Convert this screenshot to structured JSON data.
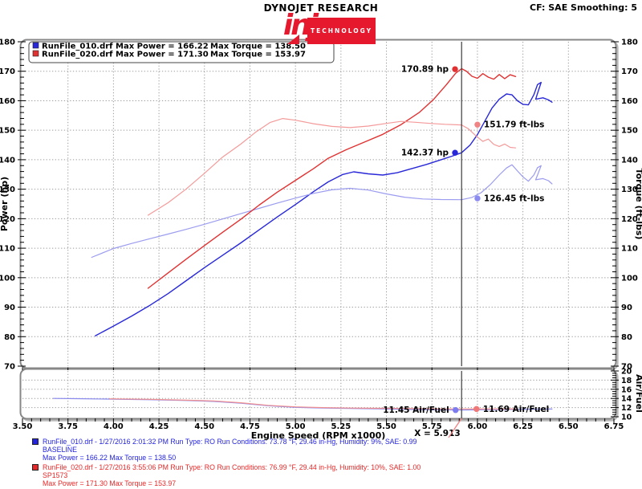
{
  "header": {
    "brand": "DYNOJET RESEARCH",
    "correction": "CF: SAE  Smoothing: 5",
    "logo_word": "injen",
    "logo_tm": "®",
    "logo_sub": "TECHNOLOGY",
    "logo_color": "#e5182e"
  },
  "legend": {
    "rows": [
      {
        "file": "RunFile_010.drf",
        "power": "Max Power = 166.22",
        "torque": "Max Torque = 138.50",
        "color": "#2828d8"
      },
      {
        "file": "RunFile_020.drf",
        "power": "Max Power = 171.30",
        "torque": "Max Torque = 153.97",
        "color": "#e03232"
      }
    ]
  },
  "cursor": {
    "rpm": 5.913,
    "label": "X = 5.913"
  },
  "chart_data": [
    {
      "type": "line",
      "xlabel": "Engine Speed (RPM x1000)",
      "ylabel_left": "Power (hp)",
      "ylabel_right": "Torque (ft-lbs)",
      "xlim": [
        3.5,
        6.75
      ],
      "x_tick_step": 0.25,
      "x_minor_step": 0.05,
      "ylim": [
        70,
        180
      ],
      "y_tick_step": 10,
      "y_minor_step": 2,
      "grid": true,
      "series": [
        {
          "id": "baseline-power",
          "name": "RunFile_010 Power (hp)",
          "color": "#2828d8",
          "width": 1.4,
          "points": [
            [
              3.9,
              80.3
            ],
            [
              4.0,
              83.6
            ],
            [
              4.1,
              87.0
            ],
            [
              4.2,
              90.6
            ],
            [
              4.3,
              94.6
            ],
            [
              4.4,
              99.0
            ],
            [
              4.5,
              103.4
            ],
            [
              4.6,
              107.6
            ],
            [
              4.7,
              111.8
            ],
            [
              4.8,
              116.2
            ],
            [
              4.9,
              120.6
            ],
            [
              5.0,
              124.8
            ],
            [
              5.1,
              129.2
            ],
            [
              5.18,
              132.5
            ],
            [
              5.26,
              135.0
            ],
            [
              5.32,
              135.9
            ],
            [
              5.4,
              135.2
            ],
            [
              5.48,
              134.8
            ],
            [
              5.56,
              135.6
            ],
            [
              5.64,
              137.0
            ],
            [
              5.72,
              138.4
            ],
            [
              5.8,
              140.0
            ],
            [
              5.86,
              141.2
            ],
            [
              5.913,
              142.37
            ],
            [
              5.96,
              145.0
            ],
            [
              6.0,
              148.5
            ],
            [
              6.04,
              153.0
            ],
            [
              6.08,
              157.5
            ],
            [
              6.12,
              160.5
            ],
            [
              6.16,
              162.3
            ],
            [
              6.19,
              162.0
            ],
            [
              6.22,
              160.0
            ],
            [
              6.25,
              158.8
            ],
            [
              6.28,
              158.6
            ],
            [
              6.31,
              162.0
            ],
            [
              6.33,
              165.5
            ],
            [
              6.35,
              166.22
            ],
            [
              6.33,
              162.5
            ],
            [
              6.32,
              160.5
            ],
            [
              6.36,
              161.0
            ],
            [
              6.39,
              160.3
            ],
            [
              6.41,
              159.5
            ]
          ]
        },
        {
          "id": "baseline-torque",
          "name": "RunFile_010 Torque (ft-lbs)",
          "color": "#9c9cf0",
          "width": 1.2,
          "points": [
            [
              3.88,
              106.9
            ],
            [
              4.0,
              109.9
            ],
            [
              4.1,
              111.6
            ],
            [
              4.2,
              113.2
            ],
            [
              4.3,
              114.8
            ],
            [
              4.4,
              116.4
            ],
            [
              4.5,
              118.1
            ],
            [
              4.6,
              119.9
            ],
            [
              4.7,
              121.7
            ],
            [
              4.8,
              123.5
            ],
            [
              4.9,
              125.3
            ],
            [
              5.0,
              127.0
            ],
            [
              5.1,
              128.6
            ],
            [
              5.2,
              129.8
            ],
            [
              5.3,
              130.3
            ],
            [
              5.4,
              129.7
            ],
            [
              5.5,
              128.4
            ],
            [
              5.6,
              127.3
            ],
            [
              5.7,
              126.7
            ],
            [
              5.8,
              126.5
            ],
            [
              5.913,
              126.45
            ],
            [
              5.97,
              127.2
            ],
            [
              6.02,
              128.8
            ],
            [
              6.07,
              131.5
            ],
            [
              6.12,
              134.8
            ],
            [
              6.16,
              137.2
            ],
            [
              6.19,
              138.3
            ],
            [
              6.22,
              136.2
            ],
            [
              6.25,
              134.2
            ],
            [
              6.28,
              132.7
            ],
            [
              6.31,
              134.8
            ],
            [
              6.33,
              137.3
            ],
            [
              6.35,
              138.0
            ],
            [
              6.33,
              134.8
            ],
            [
              6.32,
              133.2
            ],
            [
              6.36,
              133.6
            ],
            [
              6.39,
              132.9
            ],
            [
              6.41,
              131.8
            ]
          ]
        },
        {
          "id": "sp1573-power",
          "name": "RunFile_020 Power (hp)",
          "color": "#e03232",
          "width": 1.4,
          "points": [
            [
              4.19,
              96.4
            ],
            [
              4.3,
              101.6
            ],
            [
              4.4,
              106.3
            ],
            [
              4.5,
              110.9
            ],
            [
              4.6,
              115.4
            ],
            [
              4.7,
              119.8
            ],
            [
              4.8,
              124.6
            ],
            [
              4.9,
              129.0
            ],
            [
              5.0,
              133.0
            ],
            [
              5.1,
              137.0
            ],
            [
              5.18,
              140.5
            ],
            [
              5.28,
              143.4
            ],
            [
              5.38,
              146.0
            ],
            [
              5.48,
              148.6
            ],
            [
              5.58,
              151.9
            ],
            [
              5.68,
              156.0
            ],
            [
              5.76,
              160.5
            ],
            [
              5.83,
              165.5
            ],
            [
              5.88,
              169.3
            ],
            [
              5.913,
              170.89
            ],
            [
              5.94,
              170.0
            ],
            [
              5.97,
              168.3
            ],
            [
              6.0,
              167.6
            ],
            [
              6.03,
              169.2
            ],
            [
              6.06,
              168.0
            ],
            [
              6.09,
              167.3
            ],
            [
              6.12,
              168.9
            ],
            [
              6.15,
              167.5
            ],
            [
              6.18,
              168.8
            ],
            [
              6.21,
              168.2
            ]
          ]
        },
        {
          "id": "sp1573-torque",
          "name": "RunFile_020 Torque (ft-lbs)",
          "color": "#f49a9a",
          "width": 1.2,
          "points": [
            [
              4.19,
              121.2
            ],
            [
              4.3,
              125.4
            ],
            [
              4.4,
              130.1
            ],
            [
              4.5,
              135.4
            ],
            [
              4.6,
              140.9
            ],
            [
              4.7,
              145.3
            ],
            [
              4.78,
              149.3
            ],
            [
              4.86,
              152.6
            ],
            [
              4.93,
              153.97
            ],
            [
              5.0,
              153.4
            ],
            [
              5.1,
              152.2
            ],
            [
              5.2,
              151.3
            ],
            [
              5.3,
              150.9
            ],
            [
              5.4,
              151.4
            ],
            [
              5.5,
              152.3
            ],
            [
              5.58,
              153.0
            ],
            [
              5.66,
              152.7
            ],
            [
              5.74,
              152.3
            ],
            [
              5.82,
              152.0
            ],
            [
              5.913,
              151.79
            ],
            [
              5.95,
              150.5
            ],
            [
              5.99,
              148.2
            ],
            [
              6.03,
              146.2
            ],
            [
              6.06,
              147.0
            ],
            [
              6.09,
              145.2
            ],
            [
              6.12,
              144.5
            ],
            [
              6.15,
              145.3
            ],
            [
              6.18,
              144.2
            ],
            [
              6.21,
              144.0
            ]
          ]
        }
      ],
      "annotations": [
        {
          "text": "170.89 hp",
          "rpm": 5.877,
          "value": 170.7,
          "color": "#e03232",
          "side": "left"
        },
        {
          "text": "151.79 ft-lbs",
          "rpm": 6.0,
          "value": 151.9,
          "color": "#f08484",
          "side": "right"
        },
        {
          "text": "142.37 hp",
          "rpm": 5.877,
          "value": 142.37,
          "color": "#2828d8",
          "side": "left"
        },
        {
          "text": "126.45 ft-lbs",
          "rpm": 6.0,
          "value": 126.9,
          "color": "#8c8cf0",
          "side": "right"
        }
      ]
    },
    {
      "type": "line",
      "xlabel": "",
      "ylabel_left": "",
      "ylabel_right": "Air/Fuel",
      "xlim": [
        3.5,
        6.75
      ],
      "x_tick_step": 0.25,
      "x_minor_step": 0.05,
      "ylim": [
        10,
        20
      ],
      "y_tick_step": 2,
      "y_minor_step": 0.5,
      "grid": true,
      "series": [
        {
          "id": "baseline-airfuel",
          "name": "RunFile_010 Air/Fuel",
          "color": "#8a8aee",
          "width": 1.2,
          "points": [
            [
              3.67,
              14.0
            ],
            [
              3.8,
              13.95
            ],
            [
              4.0,
              13.85
            ],
            [
              4.2,
              13.72
            ],
            [
              4.4,
              13.55
            ],
            [
              4.55,
              13.35
            ],
            [
              4.7,
              12.95
            ],
            [
              4.85,
              12.4
            ],
            [
              5.0,
              12.05
            ],
            [
              5.15,
              11.9
            ],
            [
              5.3,
              11.82
            ],
            [
              5.45,
              11.72
            ],
            [
              5.6,
              11.62
            ],
            [
              5.75,
              11.52
            ],
            [
              5.913,
              11.45
            ],
            [
              6.05,
              11.55
            ],
            [
              6.2,
              11.62
            ],
            [
              6.41,
              11.68
            ]
          ]
        },
        {
          "id": "sp1573-airfuel",
          "name": "RunFile_020 Air/Fuel",
          "color": "#f29090",
          "width": 1.2,
          "points": [
            [
              3.98,
              13.92
            ],
            [
              4.2,
              13.8
            ],
            [
              4.4,
              13.62
            ],
            [
              4.55,
              13.45
            ],
            [
              4.7,
              13.05
            ],
            [
              4.85,
              12.5
            ],
            [
              5.0,
              12.15
            ],
            [
              5.15,
              12.0
            ],
            [
              5.3,
              11.9
            ],
            [
              5.45,
              11.85
            ],
            [
              5.6,
              11.8
            ],
            [
              5.75,
              11.74
            ],
            [
              5.913,
              11.7
            ],
            [
              6.0,
              11.69
            ],
            [
              6.1,
              11.7
            ],
            [
              6.21,
              11.72
            ]
          ]
        }
      ],
      "annotations": [
        {
          "text": "11.45 Air/Fuel",
          "rpm": 5.88,
          "value": 11.45,
          "color": "#7c7cf0",
          "side": "left"
        },
        {
          "text": "11.69 Air/Fuel",
          "rpm": 5.995,
          "value": 11.69,
          "color": "#f07878",
          "side": "right"
        }
      ]
    }
  ],
  "footer": {
    "runs": [
      {
        "color": "#2424e0",
        "line1": "RunFile_010.drf - 1/27/2016 2:01:32 PM  Run Type: RO  Run Conditions: 73.78 °F, 29.46 in-Hg,  Humidity:  9%, SAE: 0.99",
        "line2": "BASELINE",
        "line3": "Max Power = 166.22  Max Torque = 138.50"
      },
      {
        "color": "#e82828",
        "line1": "RunFile_020.drf - 1/27/2016 3:55:06 PM  Run Type: RO  Run Conditions: 76.99 °F, 29.44 in-Hg,  Humidity:  10%, SAE: 1.00",
        "line2": "SP1573",
        "line3": "Max Power = 171.30  Max Torque = 153.97"
      }
    ]
  }
}
